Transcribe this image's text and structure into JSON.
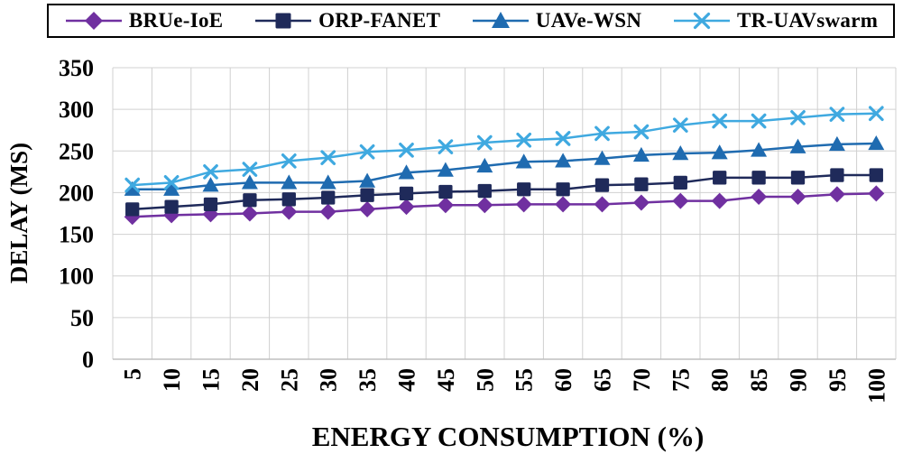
{
  "chart_data": {
    "type": "line",
    "title": "",
    "xlabel": "ENERGY CONSUMPTION (%)",
    "ylabel": "DELAY (MS)",
    "x": [
      5,
      10,
      15,
      20,
      25,
      30,
      35,
      40,
      45,
      50,
      55,
      60,
      65,
      70,
      75,
      80,
      85,
      90,
      95,
      100
    ],
    "categories": [
      "5",
      "10",
      "15",
      "20",
      "25",
      "30",
      "35",
      "40",
      "45",
      "50",
      "55",
      "60",
      "65",
      "70",
      "75",
      "80",
      "85",
      "90",
      "95",
      "100"
    ],
    "ylim": [
      0,
      350
    ],
    "yticks": [
      "0",
      "50",
      "100",
      "150",
      "200",
      "250",
      "300",
      "350"
    ],
    "grid": true,
    "legend_position": "top",
    "series": [
      {
        "name": "BRUe-IoE",
        "color": "#7030a0",
        "marker": "diamond",
        "values": [
          171,
          173,
          174,
          175,
          177,
          177,
          180,
          183,
          185,
          185,
          186,
          186,
          186,
          188,
          190,
          190,
          195,
          195,
          198,
          199
        ]
      },
      {
        "name": "ORP-FANET",
        "color": "#1f2a5a",
        "marker": "square",
        "values": [
          180,
          183,
          186,
          191,
          192,
          194,
          197,
          199,
          201,
          202,
          204,
          204,
          209,
          210,
          212,
          218,
          218,
          218,
          221,
          221
        ]
      },
      {
        "name": "UAVe-WSN",
        "color": "#1f6bb0",
        "marker": "triangle",
        "values": [
          204,
          204,
          209,
          212,
          212,
          212,
          214,
          224,
          227,
          232,
          237,
          238,
          241,
          245,
          247,
          248,
          251,
          255,
          258,
          259
        ]
      },
      {
        "name": "TR-UAVswarm",
        "color": "#3fa9e0",
        "marker": "x",
        "values": [
          209,
          212,
          225,
          228,
          238,
          242,
          249,
          251,
          255,
          260,
          263,
          265,
          271,
          273,
          281,
          286,
          286,
          290,
          294,
          295
        ]
      }
    ]
  }
}
